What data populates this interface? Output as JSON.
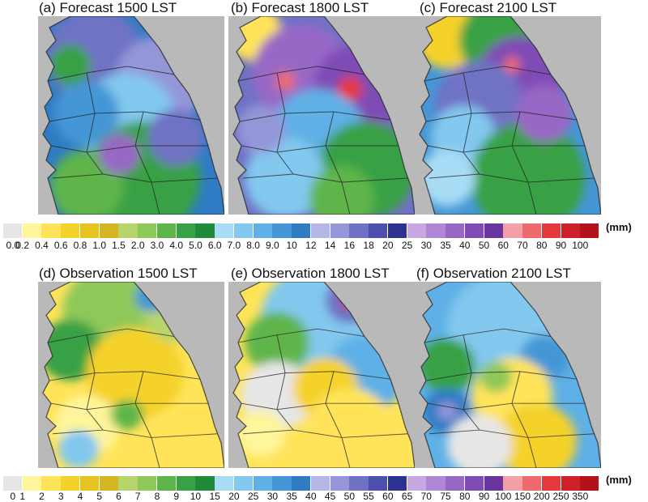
{
  "panels": [
    {
      "id": "a",
      "title": "(a) Forecast 1500 LST",
      "scheme": "fc15"
    },
    {
      "id": "b",
      "title": "(b) Forecast 1800 LST",
      "scheme": "fc18"
    },
    {
      "id": "c",
      "title": "(c) Forecast 2100 LST",
      "scheme": "fc21"
    },
    {
      "id": "d",
      "title": "(d) Observation 1500 LST",
      "scheme": "ob15"
    },
    {
      "id": "e",
      "title": "(e) Observation 1800 LST",
      "scheme": "ob18"
    },
    {
      "id": "f",
      "title": "(f) Observation 2100 LST",
      "scheme": "ob21"
    }
  ],
  "colorbars": {
    "forecast": {
      "unit": "(mm)",
      "ticks": [
        "0.0",
        "0.2",
        "0.4",
        "0.6",
        "0.8",
        "1.0",
        "1.5",
        "2.0",
        "3.0",
        "4.0",
        "5.0",
        "6.0",
        "7.0",
        "8.0",
        "9.0",
        "10",
        "12",
        "14",
        "16",
        "18",
        "20",
        "25",
        "30",
        "35",
        "40",
        "50",
        "60",
        "70",
        "80",
        "90",
        "100"
      ],
      "colors": [
        "#e6e6e6",
        "#fff59a",
        "#ffe45a",
        "#f5d22a",
        "#e6c31f",
        "#d6b522",
        "#b7d46b",
        "#8fc85a",
        "#5eb54a",
        "#38a145",
        "#1f8a3a",
        "#a8dcf5",
        "#82c8ef",
        "#5fb0e6",
        "#4596d6",
        "#2f7cc4",
        "#b5b6e6",
        "#9496d8",
        "#6f72c4",
        "#4d4fae",
        "#2f3190",
        "#c7a8e2",
        "#b087d6",
        "#9868c6",
        "#7f4cb5",
        "#6a359f",
        "#f3a0a8",
        "#ee6a6f",
        "#e6393d",
        "#cf2028",
        "#b3121c"
      ]
    },
    "observation": {
      "unit": "(mm)",
      "ticks": [
        "0",
        "1",
        "2",
        "3",
        "4",
        "5",
        "6",
        "7",
        "8",
        "9",
        "10",
        "15",
        "20",
        "25",
        "30",
        "35",
        "40",
        "45",
        "50",
        "55",
        "60",
        "65",
        "70",
        "75",
        "80",
        "90",
        "100",
        "150",
        "200",
        "250",
        "350"
      ],
      "colors": [
        "#e6e6e6",
        "#fff59a",
        "#ffe45a",
        "#f5d22a",
        "#e6c31f",
        "#d6b522",
        "#b7d46b",
        "#8fc85a",
        "#5eb54a",
        "#38a145",
        "#1f8a3a",
        "#a8dcf5",
        "#82c8ef",
        "#5fb0e6",
        "#4596d6",
        "#2f7cc4",
        "#b5b6e6",
        "#9496d8",
        "#6f72c4",
        "#4d4fae",
        "#2f3190",
        "#c7a8e2",
        "#b087d6",
        "#9868c6",
        "#7f4cb5",
        "#6a359f",
        "#f3a0a8",
        "#ee6a6f",
        "#e6393d",
        "#cf2028",
        "#b3121c"
      ]
    }
  }
}
